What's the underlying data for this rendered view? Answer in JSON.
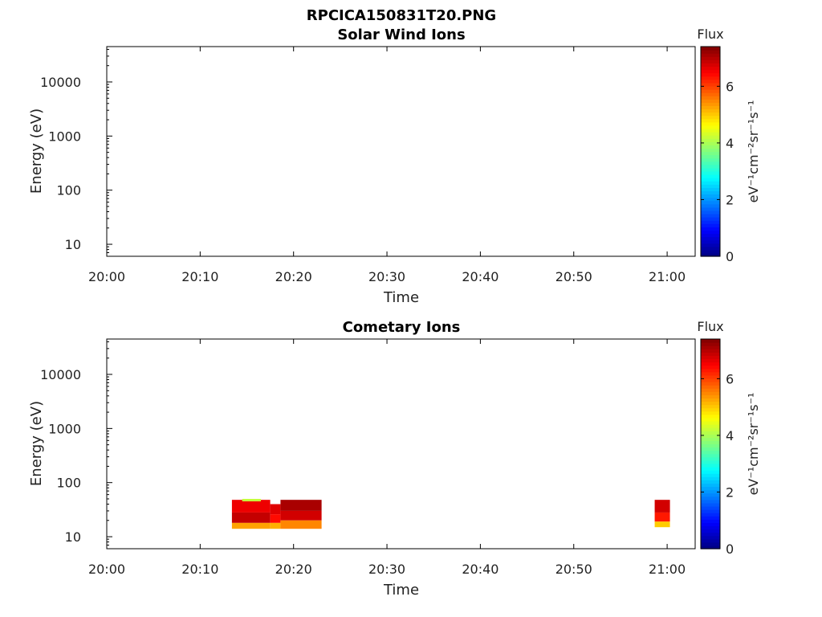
{
  "figure": {
    "title": "RPCICA150831T20.PNG"
  },
  "chart_data": [
    {
      "type": "heatmap",
      "title": "Solar Wind Ions",
      "xlabel": "Time",
      "ylabel": "Energy (eV)",
      "x_ticks": [
        "20:00",
        "20:10",
        "20:20",
        "20:30",
        "20:40",
        "20:50",
        "21:00"
      ],
      "xlim": [
        "20:00",
        "21:03"
      ],
      "y_scale": "log",
      "y_ticks": [
        10,
        100,
        1000,
        10000
      ],
      "y_tick_labels": [
        "10",
        "100",
        "1000",
        "10000"
      ],
      "ylim": [
        6,
        45000
      ],
      "colorbar": {
        "title": "Flux",
        "label": "eV⁻¹cm⁻²sr⁻¹s⁻¹",
        "ticks": [
          0,
          2,
          4,
          6
        ],
        "range": [
          0,
          7.4
        ],
        "colormap": "jet"
      },
      "cells": []
    },
    {
      "type": "heatmap",
      "title": "Cometary Ions",
      "xlabel": "Time",
      "ylabel": "Energy (eV)",
      "x_ticks": [
        "20:00",
        "20:10",
        "20:20",
        "20:30",
        "20:40",
        "20:50",
        "21:00"
      ],
      "xlim": [
        "20:00",
        "21:03"
      ],
      "y_scale": "log",
      "y_ticks": [
        10,
        100,
        1000,
        10000
      ],
      "y_tick_labels": [
        "10",
        "100",
        "1000",
        "10000"
      ],
      "ylim": [
        6,
        45000
      ],
      "colorbar": {
        "title": "Flux",
        "label": "eV⁻¹cm⁻²sr⁻¹s⁻¹",
        "ticks": [
          0,
          2,
          4,
          6
        ],
        "range": [
          0,
          7.4
        ],
        "colormap": "jet"
      },
      "cells": [
        {
          "t0": "20:13:24",
          "t1": "20:17:30",
          "e_lo": 28,
          "e_hi": 48,
          "flux": 6.6
        },
        {
          "t0": "20:13:24",
          "t1": "20:17:30",
          "e_lo": 18,
          "e_hi": 28,
          "flux": 6.9
        },
        {
          "t0": "20:13:24",
          "t1": "20:17:30",
          "e_lo": 14,
          "e_hi": 18,
          "flux": 5.3
        },
        {
          "t0": "20:14:30",
          "t1": "20:16:30",
          "e_lo": 45,
          "e_hi": 50,
          "flux": 4.2
        },
        {
          "t0": "20:17:30",
          "t1": "20:18:36",
          "e_lo": 26,
          "e_hi": 40,
          "flux": 6.7
        },
        {
          "t0": "20:17:30",
          "t1": "20:18:36",
          "e_lo": 18,
          "e_hi": 26,
          "flux": 6.4
        },
        {
          "t0": "20:17:30",
          "t1": "20:18:36",
          "e_lo": 14,
          "e_hi": 18,
          "flux": 5.2
        },
        {
          "t0": "20:18:36",
          "t1": "20:23:00",
          "e_lo": 30,
          "e_hi": 48,
          "flux": 7.1
        },
        {
          "t0": "20:18:36",
          "t1": "20:23:00",
          "e_lo": 20,
          "e_hi": 30,
          "flux": 6.8
        },
        {
          "t0": "20:18:36",
          "t1": "20:23:00",
          "e_lo": 14,
          "e_hi": 20,
          "flux": 5.5
        },
        {
          "t0": "20:58:40",
          "t1": "21:00:18",
          "e_lo": 28,
          "e_hi": 48,
          "flux": 6.8
        },
        {
          "t0": "20:58:40",
          "t1": "21:00:18",
          "e_lo": 19,
          "e_hi": 28,
          "flux": 6.3
        },
        {
          "t0": "20:58:40",
          "t1": "21:00:18",
          "e_lo": 15,
          "e_hi": 19,
          "flux": 5.0
        }
      ]
    }
  ]
}
